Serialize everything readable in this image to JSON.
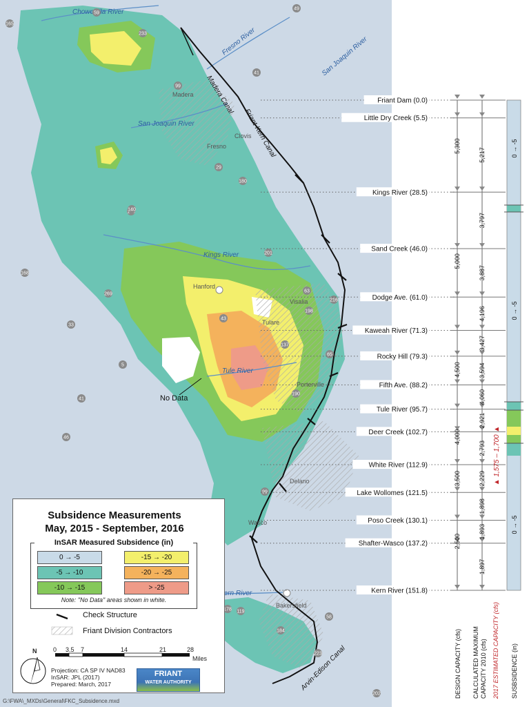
{
  "map_labels": {
    "rivers": [
      "Chowchilla River",
      "Fresno River",
      "San Joaquin River",
      "San Joaquin River",
      "Kings River",
      "Tule River",
      "Kern River"
    ],
    "canals": [
      "Madera Canal",
      "Friant-Kern Canal",
      "Arvin-Edison Canal"
    ],
    "cities": [
      "Madera",
      "Fresno",
      "Clovis",
      "Hanford",
      "Visalia",
      "Tulare",
      "Porterville",
      "Delano",
      "Wasco",
      "Bakersfield"
    ],
    "highway_shields": [
      "59",
      "49",
      "165",
      "233",
      "99",
      "41",
      "145",
      "180",
      "29",
      "140",
      "168",
      "201",
      "269",
      "198",
      "43",
      "63",
      "216",
      "137",
      "190",
      "65",
      "33",
      "41",
      "46",
      "99",
      "119",
      "178",
      "184",
      "58",
      "223",
      "202",
      "5"
    ],
    "no_data_label": "No Data"
  },
  "legend": {
    "title_line1": "Subsidence Measurements",
    "title_line2": "May, 2015 - September, 2016",
    "subtitle": "InSAR Measured Subsidence (in)",
    "classes": [
      {
        "label": "0 → -5",
        "color": "#c9dbe8"
      },
      {
        "label": "-15 → -20",
        "color": "#f3ef6c"
      },
      {
        "label": "-5 → -10",
        "color": "#6cc4b4"
      },
      {
        "label": "-20 → -25",
        "color": "#f4b25c"
      },
      {
        "label": "-10 → -15",
        "color": "#85c85a"
      },
      {
        "label": "> -25",
        "color": "#ee9b88"
      }
    ],
    "note": "Note: \"No Data\" areas shown in white.",
    "check_structure": "Check Structure",
    "contractors": "Friant Division Contractors",
    "scale_ticks": [
      "0",
      "3.5",
      "7",
      "14",
      "21",
      "28"
    ],
    "scale_unit": "Miles",
    "north": "N",
    "projection": "Projection: CA SP IV NAD83",
    "insar": "InSAR: JPL (2017)",
    "prepared": "Prepared: March, 2017",
    "logo_top": "FRIANT",
    "logo_bottom": "WATER AUTHORITY"
  },
  "canal_profile": {
    "stations": [
      {
        "name": "Friant Dam (0.0)",
        "mile": 0.0
      },
      {
        "name": "Little Dry Creek (5.5)",
        "mile": 5.5
      },
      {
        "name": "Kings River (28.5)",
        "mile": 28.5
      },
      {
        "name": "Sand Creek (46.0)",
        "mile": 46.0
      },
      {
        "name": "Dodge Ave. (61.0)",
        "mile": 61.0
      },
      {
        "name": "Kaweah River (71.3)",
        "mile": 71.3
      },
      {
        "name": "Rocky Hill (79.3)",
        "mile": 79.3
      },
      {
        "name": "Fifth Ave. (88.2)",
        "mile": 88.2
      },
      {
        "name": "Tule River (95.7)",
        "mile": 95.7
      },
      {
        "name": "Deer Creek (102.7)",
        "mile": 102.7
      },
      {
        "name": "White River (112.9)",
        "mile": 112.9
      },
      {
        "name": "Lake Wollomes (121.5)",
        "mile": 121.5
      },
      {
        "name": "Poso Creek (130.1)",
        "mile": 130.1
      },
      {
        "name": "Shafter-Wasco (137.2)",
        "mile": 137.2
      },
      {
        "name": "Kern River (151.8)",
        "mile": 151.8
      }
    ],
    "design_capacity": [
      "5,300",
      "5,000",
      "4,500",
      "4,000",
      "3,500",
      "2,500"
    ],
    "calculated_capacity": [
      "5,217",
      "3,797",
      "3,887",
      "4,196",
      "3,427",
      "3,594",
      "4,060",
      "2,921",
      "2,793",
      "2,229",
      "1,898",
      "1,893",
      "1,897"
    ],
    "estimated_2017": "1,575 – 1,700",
    "subsidence_labels": [
      "0 → -5",
      "0 → -5",
      "0 → -5"
    ],
    "column_headers": {
      "design": "DESIGN CAPACITY (cfs)",
      "calculated_line1": "CALCULATED MAXIMUM",
      "calculated_line2": "CAPACITY 2010 (cfs)",
      "estimated": "2017 ESTIMATED CAPACITY (cfs)",
      "subsidence": "SUSBSIDENCE (in)"
    }
  },
  "footer": "G:\\FWA\\_MXDs\\General\\FKC_Subsidence.mxd"
}
